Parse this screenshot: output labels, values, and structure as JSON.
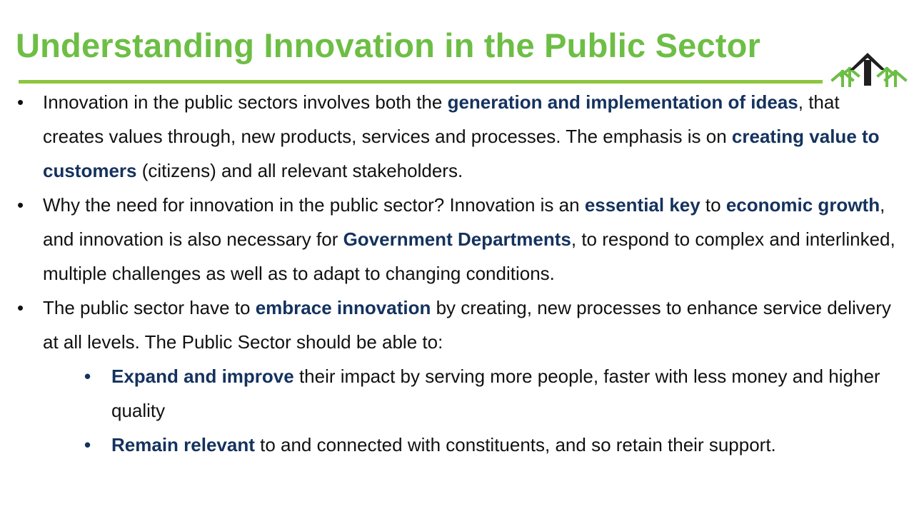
{
  "colors": {
    "title": "#6dbe45",
    "rule": "#8cc63f",
    "highlight": "#14325e",
    "logo_dark": "#1f1f1f",
    "logo_green": "#6dbe45"
  },
  "slide": {
    "title": "Understanding Innovation in the Public Sector",
    "logo_icon": "arrow-tree-logo",
    "bullet_glyph": "•",
    "bullets": [
      {
        "segments": [
          {
            "text": "Innovation in the public sectors involves both the ",
            "bold": false
          },
          {
            "text": "generation and implementation of ideas",
            "bold": true
          },
          {
            "text": ", that creates values through, new products, services and processes.  The emphasis is on ",
            "bold": false
          },
          {
            "text": "creating value to customers",
            "bold": true
          },
          {
            "text": " (citizens) and all relevant stakeholders.",
            "bold": false
          }
        ]
      },
      {
        "segments": [
          {
            "text": "Why the need for innovation in the public sector? Innovation is an ",
            "bold": false
          },
          {
            "text": "essential key",
            "bold": true
          },
          {
            "text": " to ",
            "bold": false
          },
          {
            "text": "economic growth",
            "bold": true
          },
          {
            "text": ", and innovation is also necessary for ",
            "bold": false
          },
          {
            "text": "Government Departments",
            "bold": true
          },
          {
            "text": ", to respond to complex and interlinked, multiple challenges as well as to adapt to changing conditions.",
            "bold": false
          }
        ]
      },
      {
        "segments": [
          {
            "text": "The public sector have to ",
            "bold": false
          },
          {
            "text": "embrace innovation",
            "bold": true
          },
          {
            "text": " by creating, new processes to enhance service delivery at all levels. The Public Sector should be able to:",
            "bold": false
          }
        ]
      }
    ],
    "subbullets": [
      {
        "segments": [
          {
            "text": "Expand and improve",
            "bold": true
          },
          {
            "text": " their impact by serving more people, faster with less money and higher quality",
            "bold": false
          }
        ]
      },
      {
        "segments": [
          {
            "text": "Remain relevant",
            "bold": true
          },
          {
            "text": " to and connected with constituents, and so retain their support.",
            "bold": false
          }
        ]
      }
    ]
  }
}
